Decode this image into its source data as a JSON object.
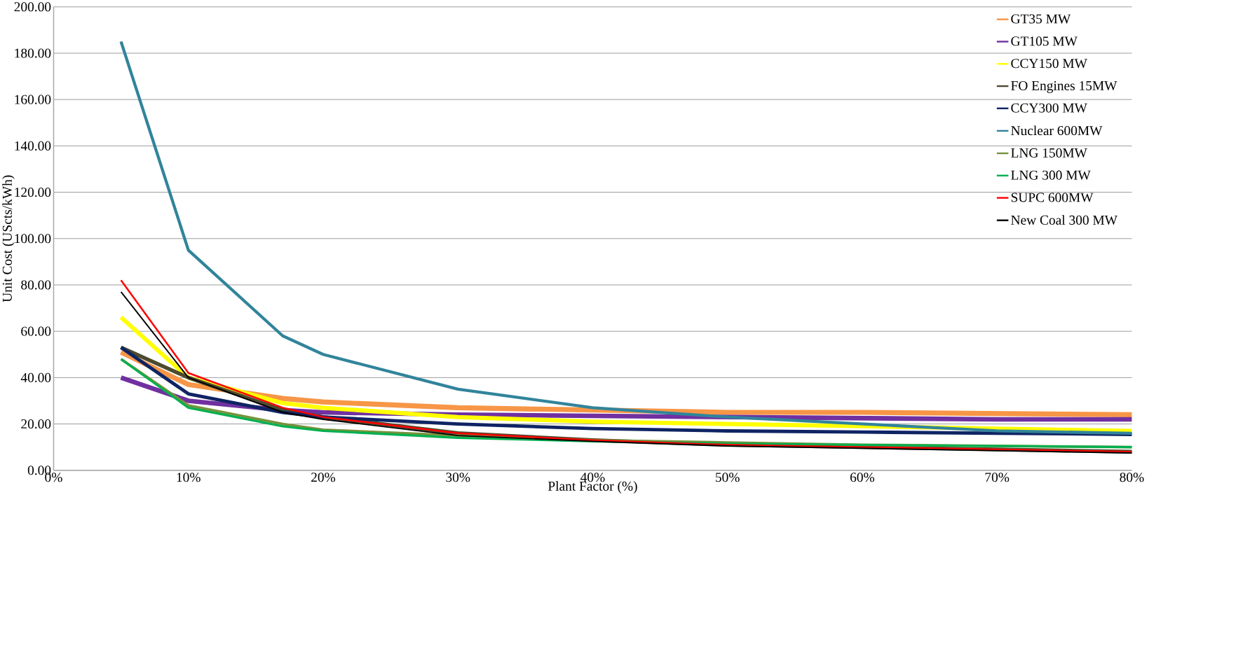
{
  "chart_data": {
    "type": "line",
    "xlabel": "Plant Factor (%)",
    "ylabel": "Unit Cost (UScts/kWh)",
    "x": [
      5,
      10,
      17,
      20,
      30,
      40,
      50,
      60,
      70,
      80
    ],
    "xlim": [
      0,
      80
    ],
    "xticks": [
      {
        "value": 0,
        "label": "0%"
      },
      {
        "value": 10,
        "label": "10%"
      },
      {
        "value": 20,
        "label": "20%"
      },
      {
        "value": 30,
        "label": "30%"
      },
      {
        "value": 40,
        "label": "40%"
      },
      {
        "value": 50,
        "label": "50%"
      },
      {
        "value": 60,
        "label": "60%"
      },
      {
        "value": 70,
        "label": "70%"
      },
      {
        "value": 80,
        "label": "80%"
      }
    ],
    "ylim": [
      0,
      200
    ],
    "yticks": [
      {
        "value": 0,
        "label": "0.00"
      },
      {
        "value": 20,
        "label": "20.00"
      },
      {
        "value": 40,
        "label": "40.00"
      },
      {
        "value": 60,
        "label": "60.00"
      },
      {
        "value": 80,
        "label": "80.00"
      },
      {
        "value": 100,
        "label": "100.00"
      },
      {
        "value": 120,
        "label": "120.00"
      },
      {
        "value": 140,
        "label": "140.00"
      },
      {
        "value": 160,
        "label": "160.00"
      },
      {
        "value": 180,
        "label": "180.00"
      },
      {
        "value": 200,
        "label": "200.00"
      }
    ],
    "grid": "y",
    "legend": "top right",
    "marker": "none",
    "line_style": "solid",
    "series": [
      {
        "name": "GT35 MW",
        "color": "#f79646",
        "values": [
          51,
          37,
          31,
          29.5,
          27,
          26,
          25,
          25,
          24.5,
          24
        ]
      },
      {
        "name": "GT105 MW",
        "color": "#7030a0",
        "values": [
          40,
          30,
          26,
          25,
          24,
          23.5,
          23,
          22.5,
          22,
          22
        ]
      },
      {
        "name": "CCY150 MW",
        "color": "#ffff00",
        "values": [
          66,
          40,
          29,
          27,
          23,
          21,
          20,
          19,
          18,
          17
        ]
      },
      {
        "name": "FO Engines 15MW",
        "color": "#4d4a2e",
        "values": [
          53,
          40,
          26,
          23,
          16,
          13,
          11,
          10,
          9,
          8
        ]
      },
      {
        "name": "CCY300 MW",
        "color": "#0f2463",
        "values": [
          53,
          33,
          25,
          23,
          20,
          18,
          17,
          16.5,
          16,
          15.5
        ]
      },
      {
        "name": "Nuclear 600MW",
        "color": "#31849b",
        "values": [
          185,
          95,
          58,
          50,
          35,
          27,
          23,
          20,
          17,
          16
        ]
      },
      {
        "name": "LNG 150MW",
        "color": "#77933c",
        "values": [
          48,
          28,
          20,
          17.5,
          15,
          13,
          12,
          11,
          10.5,
          10
        ]
      },
      {
        "name": "LNG 300 MW",
        "color": "#00b050",
        "values": [
          48,
          27,
          19,
          17,
          14,
          12.5,
          11.5,
          11,
          10.5,
          10
        ]
      },
      {
        "name": "SUPC 600MW",
        "color": "#ff0000",
        "values": [
          82,
          42,
          27,
          23,
          16,
          13,
          11,
          10,
          9,
          8
        ]
      },
      {
        "name": "New Coal  300 MW",
        "color": "#000000",
        "values": [
          77,
          40,
          25,
          22,
          15,
          12.5,
          10.5,
          9.5,
          8.5,
          7.5
        ]
      }
    ]
  }
}
